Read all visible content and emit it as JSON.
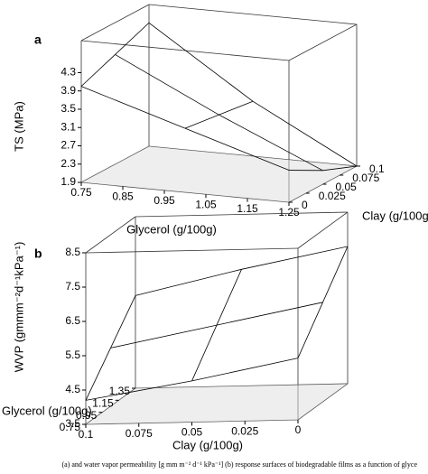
{
  "chart_data": [
    {
      "type": "surface",
      "panel": "a",
      "zlabel": "TS (MPa)",
      "xlabel": "Glycerol (g/100g)",
      "ylabel": "Clay (g/100g)",
      "xlim": [
        0.75,
        1.25
      ],
      "ylim": [
        0,
        0.1
      ],
      "zlim": [
        1.9,
        5.0
      ],
      "xticks": [
        0.75,
        0.85,
        0.95,
        1.05,
        1.15,
        1.25
      ],
      "yticks": [
        0,
        0.025,
        0.05,
        0.075,
        0.1
      ],
      "zticks": [
        1.9,
        2.3,
        2.7,
        3.1,
        3.5,
        3.9,
        4.3
      ],
      "x": [
        0.75,
        1.0,
        1.25
      ],
      "y": [
        0,
        0.05,
        0.1
      ],
      "z": [
        [
          4.0,
          4.3,
          4.6
        ],
        [
          3.3,
          3.2,
          3.1
        ],
        [
          2.6,
          2.2,
          1.9
        ]
      ],
      "color": "#000000"
    },
    {
      "type": "surface",
      "panel": "b",
      "zlabel": "WVP (gmmm⁻²d⁻¹kPa⁻¹)",
      "xlabel": "Clay (g/100g)",
      "ylabel": "Glycerol (g/100g)",
      "xlim": [
        0.1,
        0
      ],
      "ylim": [
        0.75,
        1.35
      ],
      "zlim": [
        3.5,
        8.5
      ],
      "xticks": [
        0.1,
        0.075,
        0.05,
        0.025,
        0
      ],
      "yticks": [
        0.75,
        0.95,
        1.15,
        1.35
      ],
      "zticks": [
        3.5,
        4.5,
        5.5,
        6.5,
        7.5,
        8.5
      ],
      "x": [
        0.1,
        0.05,
        0
      ],
      "y": [
        0.75,
        1.05,
        1.35
      ],
      "z": [
        [
          4.2,
          5.2,
          6.2
        ],
        [
          4.7,
          5.8,
          6.9
        ],
        [
          5.3,
          6.4,
          7.5
        ]
      ],
      "color": "#000000"
    }
  ],
  "caption": "(a) and water vapor permeability [g mm m⁻² d⁻¹ kPa⁻¹] (b) response surfaces of biodegradable films as a function of glyce"
}
